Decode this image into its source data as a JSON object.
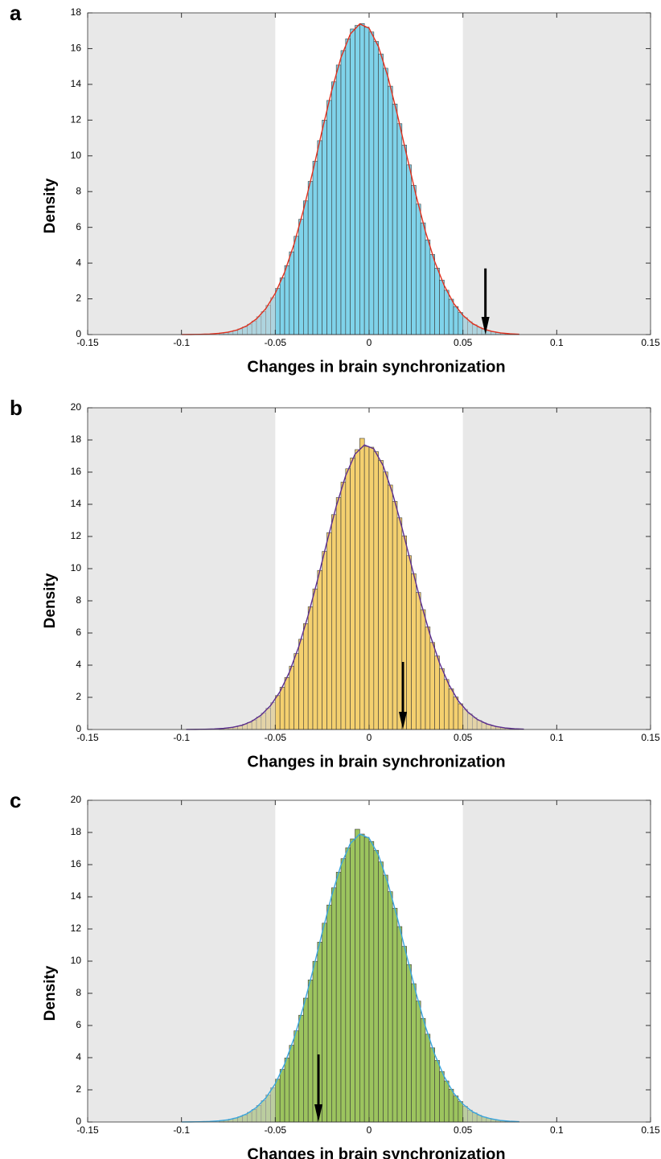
{
  "chart_data": [
    {
      "type": "histogram",
      "panel_label": "a",
      "x_label": "Changes in brain synchronization",
      "y_label": "Density",
      "xlim": [
        -0.15,
        0.15
      ],
      "xticks": [
        -0.15,
        -0.1,
        -0.05,
        0,
        0.05,
        0.1,
        0.15
      ],
      "ylim": [
        0,
        18
      ],
      "yticks": [
        0,
        2,
        4,
        6,
        8,
        10,
        12,
        14,
        16,
        18
      ],
      "shaded_regions": [
        [
          -0.15,
          -0.05
        ],
        [
          0.05,
          0.15
        ]
      ],
      "color": "#7fd3ea",
      "bins": [
        -0.08,
        -0.0775,
        -0.075,
        -0.0725,
        -0.07,
        -0.0675,
        -0.065,
        -0.0625,
        -0.06,
        -0.0575,
        -0.055,
        -0.0525,
        -0.05,
        -0.0475,
        -0.045,
        -0.0425,
        -0.04,
        -0.0375,
        -0.035,
        -0.0325,
        -0.03,
        -0.0275,
        -0.025,
        -0.0225,
        -0.02,
        -0.0175,
        -0.015,
        -0.0125,
        -0.01,
        -0.0075,
        -0.005,
        -0.0025,
        0,
        0.0025,
        0.005,
        0.0075,
        0.01,
        0.0125,
        0.015,
        0.0175,
        0.02,
        0.0225,
        0.025,
        0.0275,
        0.03,
        0.0325,
        0.035,
        0.0375,
        0.04,
        0.0425,
        0.045,
        0.0475,
        0.05,
        0.0525,
        0.055,
        0.0575,
        0.06,
        0.0625,
        0.065,
        0.0675,
        0.07,
        0.0725,
        0.075,
        0.0775,
        0.08
      ],
      "values": [
        0.09,
        0.12,
        0.17,
        0.23,
        0.32,
        0.43,
        0.58,
        0.76,
        1.0,
        1.29,
        1.64,
        2.07,
        2.58,
        3.17,
        3.86,
        4.63,
        5.5,
        6.45,
        7.48,
        8.57,
        9.7,
        10.85,
        12.0,
        13.1,
        14.14,
        15.08,
        15.89,
        16.55,
        17.1,
        17.3,
        17.4,
        17.2,
        16.93,
        16.4,
        15.7,
        14.9,
        13.9,
        12.9,
        11.8,
        10.6,
        9.5,
        8.35,
        7.3,
        6.25,
        5.3,
        4.48,
        3.72,
        3.05,
        2.48,
        1.98,
        1.57,
        1.23,
        0.95,
        0.72,
        0.55,
        0.41,
        0.3,
        0.22,
        0.16,
        0.11,
        0.08,
        0.05,
        0.04,
        0.02
      ],
      "fit": {
        "color": "#e0301e",
        "x": [
          -0.1,
          -0.095,
          -0.09,
          -0.085,
          -0.08,
          -0.075,
          -0.07,
          -0.065,
          -0.06,
          -0.055,
          -0.05,
          -0.045,
          -0.04,
          -0.035,
          -0.03,
          -0.025,
          -0.02,
          -0.015,
          -0.01,
          -0.005,
          0,
          0.005,
          0.01,
          0.015,
          0.02,
          0.025,
          0.03,
          0.035,
          0.04,
          0.045,
          0.05,
          0.055,
          0.06,
          0.065,
          0.07,
          0.075,
          0.08
        ],
        "values": [
          0.003,
          0.006,
          0.015,
          0.033,
          0.071,
          0.14,
          0.27,
          0.5,
          0.88,
          1.46,
          2.31,
          3.5,
          5.06,
          6.96,
          9.13,
          11.43,
          13.63,
          15.5,
          16.82,
          17.38,
          17.14,
          16.11,
          14.43,
          12.34,
          10.05,
          7.8,
          5.78,
          4.08,
          2.75,
          1.76,
          1.08,
          0.63,
          0.35,
          0.19,
          0.094,
          0.045,
          0.021
        ]
      },
      "arrow": {
        "x": 0.062,
        "y_start": 3.7,
        "y_end": 0
      }
    },
    {
      "type": "histogram",
      "panel_label": "b",
      "x_label": "Changes in brain synchronization",
      "y_label": "Density",
      "xlim": [
        -0.15,
        0.15
      ],
      "xticks": [
        -0.15,
        -0.1,
        -0.05,
        0,
        0.05,
        0.1,
        0.15
      ],
      "ylim": [
        0,
        20
      ],
      "yticks": [
        0,
        2,
        4,
        6,
        8,
        10,
        12,
        14,
        16,
        18,
        20
      ],
      "shaded_regions": [
        [
          -0.15,
          -0.05
        ],
        [
          0.05,
          0.15
        ]
      ],
      "color": "#f4d06f",
      "bins": [
        -0.08,
        -0.0775,
        -0.075,
        -0.0725,
        -0.07,
        -0.0675,
        -0.065,
        -0.0625,
        -0.06,
        -0.0575,
        -0.055,
        -0.0525,
        -0.05,
        -0.0475,
        -0.045,
        -0.0425,
        -0.04,
        -0.0375,
        -0.035,
        -0.0325,
        -0.03,
        -0.0275,
        -0.025,
        -0.0225,
        -0.02,
        -0.0175,
        -0.015,
        -0.0125,
        -0.01,
        -0.0075,
        -0.005,
        -0.0025,
        0,
        0.0025,
        0.005,
        0.0075,
        0.01,
        0.0125,
        0.015,
        0.0175,
        0.02,
        0.0225,
        0.025,
        0.0275,
        0.03,
        0.0325,
        0.035,
        0.0375,
        0.04,
        0.0425,
        0.045,
        0.0475,
        0.05,
        0.0525,
        0.055,
        0.0575,
        0.06,
        0.0625,
        0.065,
        0.0675,
        0.07,
        0.0725,
        0.075,
        0.0775,
        0.08
      ],
      "values": [
        0.06,
        0.09,
        0.12,
        0.17,
        0.23,
        0.33,
        0.44,
        0.59,
        0.78,
        1.02,
        1.32,
        1.67,
        2.11,
        2.63,
        3.23,
        3.94,
        4.72,
        5.61,
        6.58,
        7.63,
        8.74,
        9.89,
        11.07,
        12.24,
        13.36,
        14.42,
        15.38,
        16.21,
        16.88,
        17.4,
        18.1,
        17.6,
        17.55,
        17.27,
        16.73,
        16.01,
        15.2,
        14.18,
        13.16,
        12.04,
        10.81,
        9.69,
        8.52,
        7.45,
        6.38,
        5.41,
        4.57,
        3.79,
        3.11,
        2.53,
        2.02,
        1.6,
        1.25,
        0.97,
        0.73,
        0.56,
        0.42,
        0.31,
        0.22,
        0.16,
        0.11,
        0.08,
        0.05,
        0.04
      ],
      "fit": {
        "color": "#5b2d8e",
        "x": [
          -0.0975,
          -0.0925,
          -0.0875,
          -0.0825,
          -0.0775,
          -0.0725,
          -0.0675,
          -0.0625,
          -0.0575,
          -0.0525,
          -0.0475,
          -0.0425,
          -0.0375,
          -0.0325,
          -0.0275,
          -0.0225,
          -0.0175,
          -0.0125,
          -0.0075,
          -0.0025,
          0.0025,
          0.0075,
          0.0125,
          0.0175,
          0.0225,
          0.0275,
          0.0325,
          0.0375,
          0.0425,
          0.0475,
          0.0525,
          0.0575,
          0.0625,
          0.0675,
          0.0725,
          0.0775,
          0.0825
        ],
        "values": [
          0.003,
          0.006,
          0.015,
          0.034,
          0.072,
          0.14,
          0.27,
          0.51,
          0.9,
          1.49,
          2.35,
          3.56,
          5.15,
          7.09,
          9.29,
          11.64,
          13.88,
          15.78,
          17.12,
          17.69,
          17.45,
          16.4,
          14.69,
          12.56,
          10.23,
          7.94,
          5.88,
          4.15,
          2.8,
          1.79,
          1.1,
          0.64,
          0.36,
          0.19,
          0.096,
          0.046,
          0.021
        ]
      },
      "arrow": {
        "x": 0.018,
        "y_start": 4.2,
        "y_end": 0
      }
    },
    {
      "type": "histogram",
      "panel_label": "c",
      "x_label": "Changes in brain synchronization",
      "y_label": "Density",
      "xlim": [
        -0.15,
        0.15
      ],
      "xticks": [
        -0.15,
        -0.1,
        -0.05,
        0,
        0.05,
        0.1,
        0.15
      ],
      "ylim": [
        0,
        20
      ],
      "yticks": [
        0,
        2,
        4,
        6,
        8,
        10,
        12,
        14,
        16,
        18,
        20
      ],
      "shaded_regions": [
        [
          -0.15,
          -0.05
        ],
        [
          0.05,
          0.15
        ]
      ],
      "color": "#9cc45e",
      "bins": [
        -0.08,
        -0.0775,
        -0.075,
        -0.0725,
        -0.07,
        -0.0675,
        -0.065,
        -0.0625,
        -0.06,
        -0.0575,
        -0.055,
        -0.0525,
        -0.05,
        -0.0475,
        -0.045,
        -0.0425,
        -0.04,
        -0.0375,
        -0.035,
        -0.0325,
        -0.03,
        -0.0275,
        -0.025,
        -0.0225,
        -0.02,
        -0.0175,
        -0.015,
        -0.0125,
        -0.01,
        -0.0075,
        -0.005,
        -0.0025,
        0,
        0.0025,
        0.005,
        0.0075,
        0.01,
        0.0125,
        0.015,
        0.0175,
        0.02,
        0.0225,
        0.025,
        0.0275,
        0.03,
        0.0325,
        0.035,
        0.0375,
        0.04,
        0.0425,
        0.045,
        0.0475,
        0.05,
        0.0525,
        0.055,
        0.0575,
        0.06,
        0.0625,
        0.065,
        0.0675,
        0.07,
        0.0725,
        0.075,
        0.0775,
        0.08
      ],
      "values": [
        0.09,
        0.12,
        0.18,
        0.24,
        0.33,
        0.44,
        0.6,
        0.78,
        1.03,
        1.33,
        1.69,
        2.13,
        2.66,
        3.27,
        3.98,
        4.77,
        5.67,
        6.64,
        7.7,
        8.83,
        9.99,
        11.18,
        12.36,
        13.49,
        14.56,
        15.53,
        16.37,
        17.05,
        17.6,
        18.2,
        17.9,
        17.7,
        17.44,
        16.89,
        16.17,
        15.35,
        14.32,
        13.29,
        12.15,
        10.92,
        9.79,
        8.6,
        7.52,
        6.44,
        5.46,
        4.61,
        3.83,
        3.14,
        2.55,
        2.04,
        1.62,
        1.27,
        0.98,
        0.74,
        0.57,
        0.42,
        0.31,
        0.23,
        0.16,
        0.11,
        0.08,
        0.05,
        0.04,
        0.02
      ],
      "fit": {
        "color": "#3aa6dd",
        "x": [
          -0.1,
          -0.095,
          -0.09,
          -0.085,
          -0.08,
          -0.075,
          -0.07,
          -0.065,
          -0.06,
          -0.055,
          -0.05,
          -0.045,
          -0.04,
          -0.035,
          -0.03,
          -0.025,
          -0.02,
          -0.015,
          -0.01,
          -0.005,
          0,
          0.005,
          0.01,
          0.015,
          0.02,
          0.025,
          0.03,
          0.035,
          0.04,
          0.045,
          0.05,
          0.055,
          0.06,
          0.065,
          0.07,
          0.075,
          0.08
        ],
        "values": [
          0.003,
          0.006,
          0.015,
          0.034,
          0.073,
          0.14,
          0.28,
          0.52,
          0.91,
          1.5,
          2.38,
          3.61,
          5.21,
          7.17,
          9.4,
          11.77,
          14.04,
          15.97,
          17.32,
          17.9,
          17.65,
          16.59,
          14.86,
          12.71,
          10.35,
          8.03,
          5.95,
          4.2,
          2.83,
          1.81,
          1.11,
          0.65,
          0.36,
          0.2,
          0.097,
          0.046,
          0.022
        ]
      },
      "arrow": {
        "x": -0.027,
        "y_start": 4.2,
        "y_end": 0
      }
    }
  ]
}
